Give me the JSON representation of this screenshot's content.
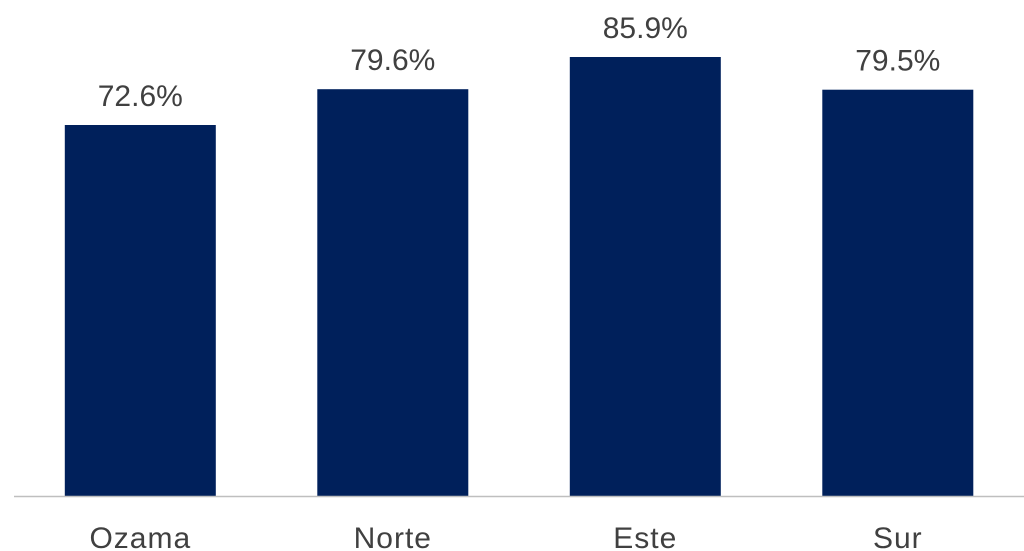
{
  "chart_data": {
    "type": "bar",
    "categories": [
      "Ozama",
      "Norte",
      "Este",
      "Sur"
    ],
    "values": [
      72.6,
      79.6,
      85.9,
      79.5
    ],
    "value_labels": [
      "72.6%",
      "79.6%",
      "85.9%",
      "79.5%"
    ],
    "unit": "%",
    "ylim": [
      0,
      100
    ],
    "grid": false,
    "legend": "none",
    "colors": {
      "bar": "#00205B",
      "axis": "#BFBFBF",
      "text": "#404040"
    }
  }
}
